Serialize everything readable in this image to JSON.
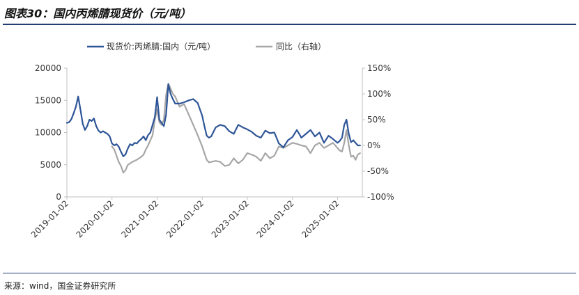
{
  "figure": {
    "title": "图表30：国内丙烯腈现货价（元/吨）",
    "source": "来源：wind，国金证券研究所"
  },
  "chart_data": {
    "type": "line",
    "dual_axis": true,
    "x_ticks": [
      "2019-01-02",
      "2020-01-02",
      "2021-01-02",
      "2022-01-02",
      "2023-01-02",
      "2024-01-02",
      "2025-01-02"
    ],
    "x_range": [
      2019.0,
      2025.55
    ],
    "y_left": {
      "min": 0,
      "max": 20000,
      "ticks": [
        "0",
        "5000",
        "10000",
        "15000",
        "20000"
      ]
    },
    "y_right": {
      "min": -100,
      "max": 150,
      "ticks": [
        "-100%",
        "-50%",
        "0%",
        "50%",
        "100%",
        "150%"
      ]
    },
    "grid": false,
    "legend_position": "top",
    "colors": {
      "price": "#2e5597",
      "yoy": "#a6a6a6",
      "axis": "#bfbfbf",
      "title_rule": "#1f3d72"
    },
    "series": [
      {
        "name": "现货价:丙烯腈:国内（元/吨）",
        "axis": "left",
        "x": [
          2019.0,
          2019.05,
          2019.1,
          2019.15,
          2019.2,
          2019.25,
          2019.3,
          2019.35,
          2019.4,
          2019.45,
          2019.5,
          2019.55,
          2019.6,
          2019.65,
          2019.7,
          2019.75,
          2019.8,
          2019.85,
          2019.9,
          2019.95,
          2020.0,
          2020.05,
          2020.1,
          2020.15,
          2020.2,
          2020.25,
          2020.3,
          2020.35,
          2020.4,
          2020.45,
          2020.5,
          2020.55,
          2020.6,
          2020.65,
          2020.7,
          2020.75,
          2020.8,
          2020.85,
          2020.9,
          2020.95,
          2021.0,
          2021.05,
          2021.1,
          2021.15,
          2021.2,
          2021.25,
          2021.3,
          2021.35,
          2021.4,
          2021.5,
          2021.6,
          2021.7,
          2021.8,
          2021.9,
          2022.0,
          2022.05,
          2022.1,
          2022.15,
          2022.2,
          2022.3,
          2022.4,
          2022.5,
          2022.6,
          2022.7,
          2022.8,
          2022.9,
          2023.0,
          2023.1,
          2023.2,
          2023.3,
          2023.4,
          2023.5,
          2023.6,
          2023.7,
          2023.8,
          2023.9,
          2024.0,
          2024.1,
          2024.2,
          2024.3,
          2024.4,
          2024.5,
          2024.6,
          2024.7,
          2024.8,
          2024.9,
          2025.0,
          2025.05,
          2025.1,
          2025.15,
          2025.2,
          2025.25,
          2025.3,
          2025.35,
          2025.4,
          2025.45,
          2025.5
        ],
        "values": [
          11500,
          11600,
          12100,
          13000,
          14000,
          15600,
          13600,
          11400,
          10400,
          11000,
          12000,
          11800,
          12200,
          11000,
          10300,
          10000,
          10200,
          10000,
          9800,
          9400,
          8300,
          8000,
          8200,
          7800,
          7000,
          6300,
          6600,
          7500,
          8200,
          8000,
          8400,
          8300,
          8700,
          9000,
          9400,
          8800,
          9600,
          10000,
          11200,
          12400,
          15500,
          12000,
          11500,
          11000,
          12800,
          17500,
          16000,
          15200,
          14500,
          14500,
          14700,
          15000,
          15200,
          14600,
          12600,
          11000,
          9500,
          9200,
          9400,
          10800,
          11200,
          11000,
          10200,
          9800,
          11200,
          10800,
          10500,
          10100,
          9500,
          9200,
          10300,
          9900,
          10000,
          8300,
          7700,
          8800,
          9300,
          10400,
          9200,
          9800,
          10400,
          9400,
          10000,
          8400,
          9500,
          9000,
          8400,
          8700,
          9200,
          11200,
          12000,
          9800,
          8500,
          8800,
          8400,
          8000,
          8000
        ]
      },
      {
        "name": "同比（右轴）",
        "axis": "right",
        "x": [
          2020.0,
          2020.05,
          2020.1,
          2020.15,
          2020.2,
          2020.25,
          2020.3,
          2020.35,
          2020.4,
          2020.45,
          2020.5,
          2020.55,
          2020.6,
          2020.65,
          2020.7,
          2020.75,
          2020.8,
          2020.85,
          2020.9,
          2020.95,
          2021.0,
          2021.05,
          2021.1,
          2021.15,
          2021.2,
          2021.25,
          2021.3,
          2021.35,
          2021.4,
          2021.45,
          2021.5,
          2021.55,
          2021.6,
          2021.7,
          2021.8,
          2021.9,
          2022.0,
          2022.05,
          2022.1,
          2022.15,
          2022.2,
          2022.3,
          2022.4,
          2022.5,
          2022.6,
          2022.7,
          2022.8,
          2022.9,
          2023.0,
          2023.1,
          2023.2,
          2023.3,
          2023.4,
          2023.5,
          2023.6,
          2023.7,
          2023.8,
          2023.9,
          2024.0,
          2024.1,
          2024.2,
          2024.3,
          2024.4,
          2024.5,
          2024.6,
          2024.7,
          2024.8,
          2024.9,
          2025.0,
          2025.05,
          2025.1,
          2025.15,
          2025.2,
          2025.25,
          2025.3,
          2025.35,
          2025.4,
          2025.45,
          2025.5
        ],
        "values": [
          -2,
          -8,
          -20,
          -32,
          -40,
          -53,
          -48,
          -38,
          -35,
          -32,
          -30,
          -28,
          -25,
          -22,
          -18,
          -8,
          0,
          10,
          20,
          50,
          70,
          45,
          40,
          50,
          98,
          120,
          110,
          100,
          95,
          85,
          75,
          78,
          80,
          60,
          40,
          20,
          -2,
          -15,
          -28,
          -33,
          -32,
          -30,
          -32,
          -40,
          -38,
          -25,
          -35,
          -28,
          -15,
          -18,
          -22,
          -30,
          -15,
          -25,
          -20,
          -2,
          -5,
          0,
          5,
          3,
          0,
          -2,
          -15,
          0,
          5,
          -5,
          0,
          5,
          -5,
          -10,
          -12,
          5,
          30,
          0,
          -22,
          -20,
          -28,
          -18,
          -15
        ]
      }
    ]
  }
}
